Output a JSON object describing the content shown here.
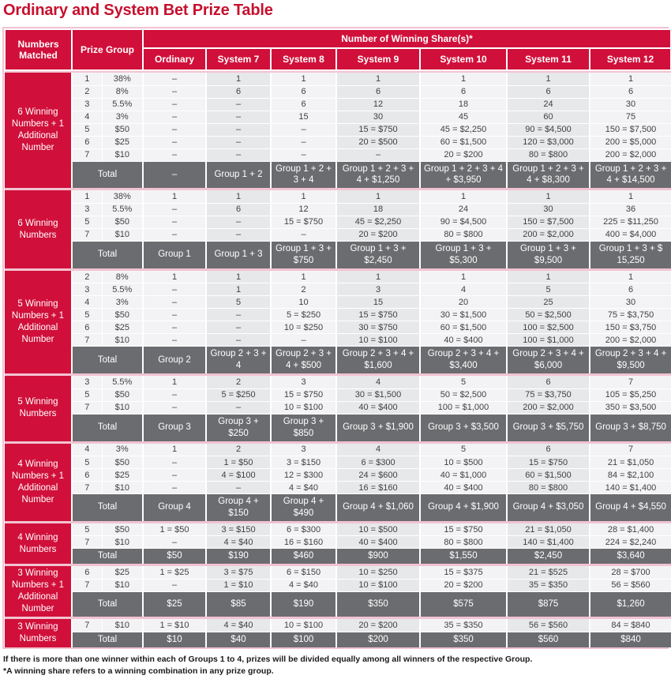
{
  "page": {
    "title": "Ordinary and System Bet Prize Table",
    "notes": [
      "If there is more than one winner within each of Groups 1 to 4, prizes will be divided equally among all winners of the respective Group.",
      "*A winning share refers to a winning combination in any prize group."
    ]
  },
  "colors": {
    "header_red": "#d0103a",
    "title_red": "#c8102e",
    "total_gray": "#6b6c6f",
    "shaded_column": "#e7e8ea",
    "light_column": "#f3f3f5",
    "separator_pink": "#f2c3d2"
  },
  "table": {
    "headers": {
      "numbers_matched": "Numbers Matched",
      "prize_group": "Prize Group",
      "winning_shares": "Number of Winning Share(s)*",
      "columns": [
        "Ordinary",
        "System 7",
        "System 8",
        "System 9",
        "System 10",
        "System 11",
        "System 12"
      ]
    },
    "total_label": "Total",
    "blocks": [
      {
        "label": "6 Winning Numbers + 1 Additional Number",
        "rows": [
          {
            "group": "1",
            "prize": "38%",
            "values": [
              "–",
              "1",
              "1",
              "1",
              "1",
              "1",
              "1"
            ]
          },
          {
            "group": "2",
            "prize": "8%",
            "values": [
              "–",
              "6",
              "6",
              "6",
              "6",
              "6",
              "6"
            ]
          },
          {
            "group": "3",
            "prize": "5.5%",
            "values": [
              "–",
              "–",
              "6",
              "12",
              "18",
              "24",
              "30"
            ]
          },
          {
            "group": "4",
            "prize": "3%",
            "values": [
              "–",
              "–",
              "15",
              "30",
              "45",
              "60",
              "75"
            ]
          },
          {
            "group": "5",
            "prize": "$50",
            "values": [
              "–",
              "–",
              "–",
              "15 = $750",
              "45 = $2,250",
              "90 = $4,500",
              "150 = $7,500"
            ]
          },
          {
            "group": "6",
            "prize": "$25",
            "values": [
              "–",
              "–",
              "–",
              "20 = $500",
              "60 = $1,500",
              "120 = $3,000",
              "200 = $5,000"
            ]
          },
          {
            "group": "7",
            "prize": "$10",
            "values": [
              "–",
              "–",
              "–",
              "–",
              "20 = $200",
              "80 = $800",
              "200 = $2,000"
            ]
          }
        ],
        "totals": [
          "–",
          "Group 1 + 2",
          "Group 1 + 2 + 3 + 4",
          "Group 1 + 2 + 3 + 4 + $1,250",
          "Group 1 + 2 + 3 + 4 + $3,950",
          "Group 1 + 2 + 3 + 4 + $8,300",
          "Group 1 + 2 + 3 + 4 + $14,500"
        ]
      },
      {
        "label": "6 Winning Numbers",
        "rows": [
          {
            "group": "1",
            "prize": "38%",
            "values": [
              "1",
              "1",
              "1",
              "1",
              "1",
              "1",
              "1"
            ]
          },
          {
            "group": "3",
            "prize": "5.5%",
            "values": [
              "–",
              "6",
              "12",
              "18",
              "24",
              "30",
              "36"
            ]
          },
          {
            "group": "5",
            "prize": "$50",
            "values": [
              "–",
              "–",
              "15 = $750",
              "45 = $2,250",
              "90 = $4,500",
              "150 = $7,500",
              "225 = $11,250"
            ]
          },
          {
            "group": "7",
            "prize": "$10",
            "values": [
              "–",
              "–",
              "–",
              "20 = $200",
              "80 = $800",
              "200 = $2,000",
              "400 = $4,000"
            ]
          }
        ],
        "totals": [
          "Group 1",
          "Group 1 + 3",
          "Group 1 + 3 + $750",
          "Group 1 + 3 + $2,450",
          "Group 1 + 3 + $5,300",
          "Group 1 + 3 + $9,500",
          "Group 1 + 3 + $ 15,250"
        ]
      },
      {
        "label": "5 Winning Numbers + 1 Additional Number",
        "rows": [
          {
            "group": "2",
            "prize": "8%",
            "values": [
              "1",
              "1",
              "1",
              "1",
              "1",
              "1",
              "1"
            ]
          },
          {
            "group": "3",
            "prize": "5.5%",
            "values": [
              "–",
              "1",
              "2",
              "3",
              "4",
              "5",
              "6"
            ]
          },
          {
            "group": "4",
            "prize": "3%",
            "values": [
              "–",
              "5",
              "10",
              "15",
              "20",
              "25",
              "30"
            ]
          },
          {
            "group": "5",
            "prize": "$50",
            "values": [
              "–",
              "–",
              "5 = $250",
              "15 = $750",
              "30 = $1,500",
              "50 = $2,500",
              "75 = $3,750"
            ]
          },
          {
            "group": "6",
            "prize": "$25",
            "values": [
              "–",
              "–",
              "10 = $250",
              "30 = $750",
              "60 = $1,500",
              "100 = $2,500",
              "150 = $3,750"
            ]
          },
          {
            "group": "7",
            "prize": "$10",
            "values": [
              "–",
              "–",
              "–",
              "10 = $100",
              "40 = $400",
              "100 = $1,000",
              "200 = $2,000"
            ]
          }
        ],
        "totals": [
          "Group 2",
          "Group 2 + 3 + 4",
          "Group 2 + 3 + 4 + $500",
          "Group 2 + 3 + 4 + $1,600",
          "Group 2 + 3 + 4 + $3,400",
          "Group 2 + 3 + 4 + $6,000",
          "Group 2 + 3 + 4 + $9,500"
        ]
      },
      {
        "label": "5 Winning Numbers",
        "rows": [
          {
            "group": "3",
            "prize": "5.5%",
            "values": [
              "1",
              "2",
              "3",
              "4",
              "5",
              "6",
              "7"
            ]
          },
          {
            "group": "5",
            "prize": "$50",
            "values": [
              "–",
              "5 = $250",
              "15 = $750",
              "30 = $1,500",
              "50 = $2,500",
              "75 = $3,750",
              "105 = $5,250"
            ]
          },
          {
            "group": "7",
            "prize": "$10",
            "values": [
              "–",
              "–",
              "10 = $100",
              "40 = $400",
              "100 = $1,000",
              "200 = $2,000",
              "350 = $3,500"
            ]
          }
        ],
        "totals": [
          "Group 3",
          "Group 3 + $250",
          "Group 3 + $850",
          "Group 3 + $1,900",
          "Group 3 + $3,500",
          "Group 3 + $5,750",
          "Group 3 + $8,750"
        ]
      },
      {
        "label": "4 Winning Numbers + 1 Additional Number",
        "rows": [
          {
            "group": "4",
            "prize": "3%",
            "values": [
              "1",
              "2",
              "3",
              "4",
              "5",
              "6",
              "7"
            ]
          },
          {
            "group": "5",
            "prize": "$50",
            "values": [
              "–",
              "1 = $50",
              "3 = $150",
              "6 = $300",
              "10 = $500",
              "15 = $750",
              "21 = $1,050"
            ]
          },
          {
            "group": "6",
            "prize": "$25",
            "values": [
              "–",
              "4 = $100",
              "12 = $300",
              "24 = $600",
              "40 = $1,000",
              "60 = $1,500",
              "84 = $2,100"
            ]
          },
          {
            "group": "7",
            "prize": "$10",
            "values": [
              "–",
              "–",
              "4 = $40",
              "16 = $160",
              "40 = $400",
              "80 = $800",
              "140 = $1,400"
            ]
          }
        ],
        "totals": [
          "Group 4",
          "Group 4 + $150",
          "Group 4 + $490",
          "Group 4 + $1,060",
          "Group 4 + $1,900",
          "Group 4 + $3,050",
          "Group 4 + $4,550"
        ]
      },
      {
        "label": "4 Winning Numbers",
        "rows": [
          {
            "group": "5",
            "prize": "$50",
            "values": [
              "1 = $50",
              "3 = $150",
              "6 = $300",
              "10 = $500",
              "15 = $750",
              "21 = $1,050",
              "28 = $1,400"
            ]
          },
          {
            "group": "7",
            "prize": "$10",
            "values": [
              "–",
              "4 = $40",
              "16 = $160",
              "40 = $400",
              "80 = $800",
              "140 = $1,400",
              "224 = $2,240"
            ]
          }
        ],
        "totals": [
          "$50",
          "$190",
          "$460",
          "$900",
          "$1,550",
          "$2,450",
          "$3,640"
        ]
      },
      {
        "label": "3 Winning Numbers + 1 Additional Number",
        "rows": [
          {
            "group": "6",
            "prize": "$25",
            "values": [
              "1 = $25",
              "3 = $75",
              "6 = $150",
              "10 = $250",
              "15 = $375",
              "21 = $525",
              "28 = $700"
            ]
          },
          {
            "group": "7",
            "prize": "$10",
            "values": [
              "–",
              "1 = $10",
              "4 = $40",
              "10 = $100",
              "20 = $200",
              "35 = $350",
              "56 = $560"
            ]
          }
        ],
        "totals": [
          "$25",
          "$85",
          "$190",
          "$350",
          "$575",
          "$875",
          "$1,260"
        ]
      },
      {
        "label": "3 Winning Numbers",
        "rows": [
          {
            "group": "7",
            "prize": "$10",
            "values": [
              "1 = $10",
              "4 = $40",
              "10 = $100",
              "20 = $200",
              "35 = $350",
              "56 = $560",
              "84 = $840"
            ]
          }
        ],
        "totals": [
          "$10",
          "$40",
          "$100",
          "$200",
          "$350",
          "$560",
          "$840"
        ]
      }
    ]
  }
}
